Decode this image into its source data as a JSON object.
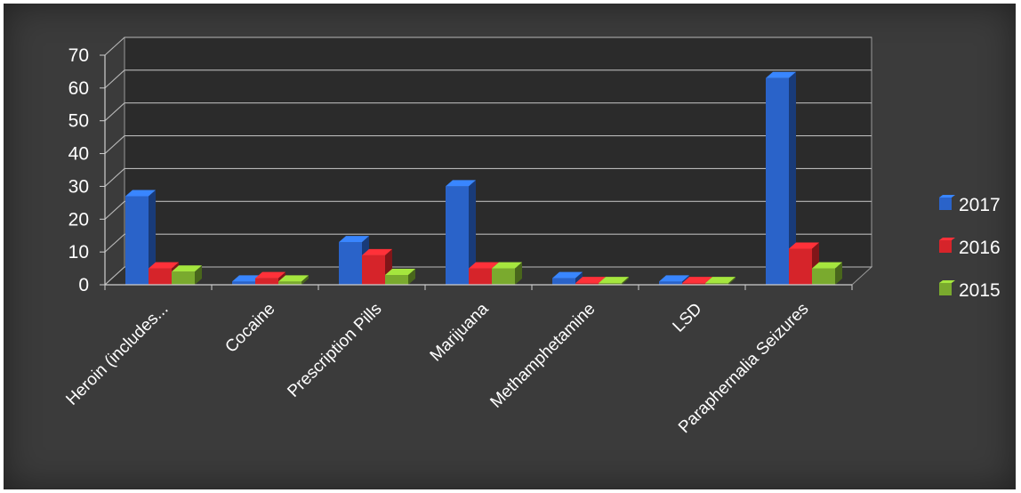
{
  "chart_data": {
    "type": "bar",
    "categories": [
      "Heroin (includes...",
      "Cocaine",
      "Prescription Pills",
      "Marijuana",
      "Methamphetamine",
      "LSD",
      "Paraphernalia Seizures"
    ],
    "series": [
      {
        "name": "2017",
        "color": "#2a63c9",
        "values": [
          27,
          1,
          13,
          30,
          2,
          1,
          63
        ]
      },
      {
        "name": "2016",
        "color": "#d6242a",
        "values": [
          5,
          2,
          9,
          5,
          0.5,
          0.5,
          11
        ]
      },
      {
        "name": "2015",
        "color": "#7aaa2e",
        "values": [
          4,
          1,
          3,
          5,
          0.5,
          0.5,
          5
        ]
      }
    ],
    "ylim": [
      0,
      70
    ],
    "yticks": [
      "0",
      "10",
      "20",
      "30",
      "40",
      "50",
      "60",
      "70"
    ],
    "grid": true,
    "legend_position": "right",
    "style": "3d-column"
  }
}
